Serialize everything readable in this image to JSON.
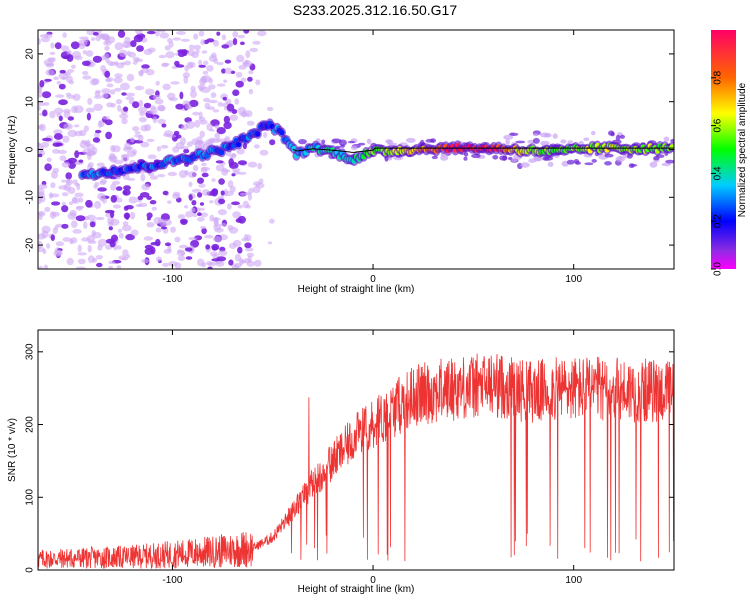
{
  "title": "S233.2025.312.16.50.G17",
  "colors": {
    "snr_line": "#ee3333",
    "purple": "#8a2be2",
    "cyan": "#33ddee",
    "red": "#ff2222"
  },
  "chart_data": [
    {
      "type": "heatmap",
      "name": "spectrogram",
      "xlabel": "Height of straight line (km)",
      "ylabel": "Frequency (Hz)",
      "xlim": [
        -167,
        150
      ],
      "ylim": [
        -25,
        25
      ],
      "x_ticks": [
        -100,
        0,
        100
      ],
      "y_ticks": [
        -20,
        -10,
        0,
        10,
        20
      ],
      "colorbar": {
        "label": "Normalized spectral amplitude",
        "range": [
          0,
          1
        ],
        "ticks": [
          "0.0",
          "0.2",
          "0.4",
          "0.6",
          "0.8"
        ],
        "tick_values": [
          0,
          0.2,
          0.4,
          0.6,
          0.8
        ]
      },
      "ridge": [
        {
          "x": -140,
          "f": -5,
          "a": 0.3
        },
        {
          "x": -113,
          "f": -3.5,
          "a": 0.25
        },
        {
          "x": -95,
          "f": -2,
          "a": 0.3
        },
        {
          "x": -75,
          "f": 0,
          "a": 0.28
        },
        {
          "x": -60,
          "f": 3,
          "a": 0.25
        },
        {
          "x": -52,
          "f": 5.5,
          "a": 0.22
        },
        {
          "x": -45,
          "f": 3,
          "a": 0.3
        },
        {
          "x": -38,
          "f": -1,
          "a": 0.3
        },
        {
          "x": -30,
          "f": 0.5,
          "a": 0.35
        },
        {
          "x": -20,
          "f": -0.5,
          "a": 0.4
        },
        {
          "x": -10,
          "f": -2,
          "a": 0.4
        },
        {
          "x": 0,
          "f": -0.5,
          "a": 0.55
        },
        {
          "x": 20,
          "f": 0,
          "a": 0.7
        },
        {
          "x": 40,
          "f": 0.3,
          "a": 0.95
        },
        {
          "x": 60,
          "f": 0.3,
          "a": 0.95
        },
        {
          "x": 70,
          "f": 0,
          "a": 0.7
        },
        {
          "x": 90,
          "f": -0.5,
          "a": 0.5
        },
        {
          "x": 110,
          "f": 0.3,
          "a": 0.6
        },
        {
          "x": 150,
          "f": 0.2,
          "a": 0.55
        }
      ]
    },
    {
      "type": "line",
      "name": "snr",
      "xlabel": "Height of straight line (km)",
      "ylabel": "SNR (10 * v/v)",
      "xlim": [
        -167,
        150
      ],
      "ylim": [
        0,
        330
      ],
      "x_ticks": [
        -100,
        0,
        100
      ],
      "y_ticks": [
        0,
        100,
        200,
        300
      ],
      "envelope": [
        {
          "x": -167,
          "y": 15
        },
        {
          "x": -120,
          "y": 18
        },
        {
          "x": -80,
          "y": 25
        },
        {
          "x": -60,
          "y": 30
        },
        {
          "x": -50,
          "y": 45
        },
        {
          "x": -40,
          "y": 80
        },
        {
          "x": -30,
          "y": 120
        },
        {
          "x": -20,
          "y": 150
        },
        {
          "x": -10,
          "y": 180
        },
        {
          "x": 0,
          "y": 200
        },
        {
          "x": 10,
          "y": 220
        },
        {
          "x": 20,
          "y": 240
        },
        {
          "x": 40,
          "y": 250
        },
        {
          "x": 60,
          "y": 255
        },
        {
          "x": 80,
          "y": 245
        },
        {
          "x": 100,
          "y": 250
        },
        {
          "x": 150,
          "y": 245
        }
      ]
    }
  ]
}
